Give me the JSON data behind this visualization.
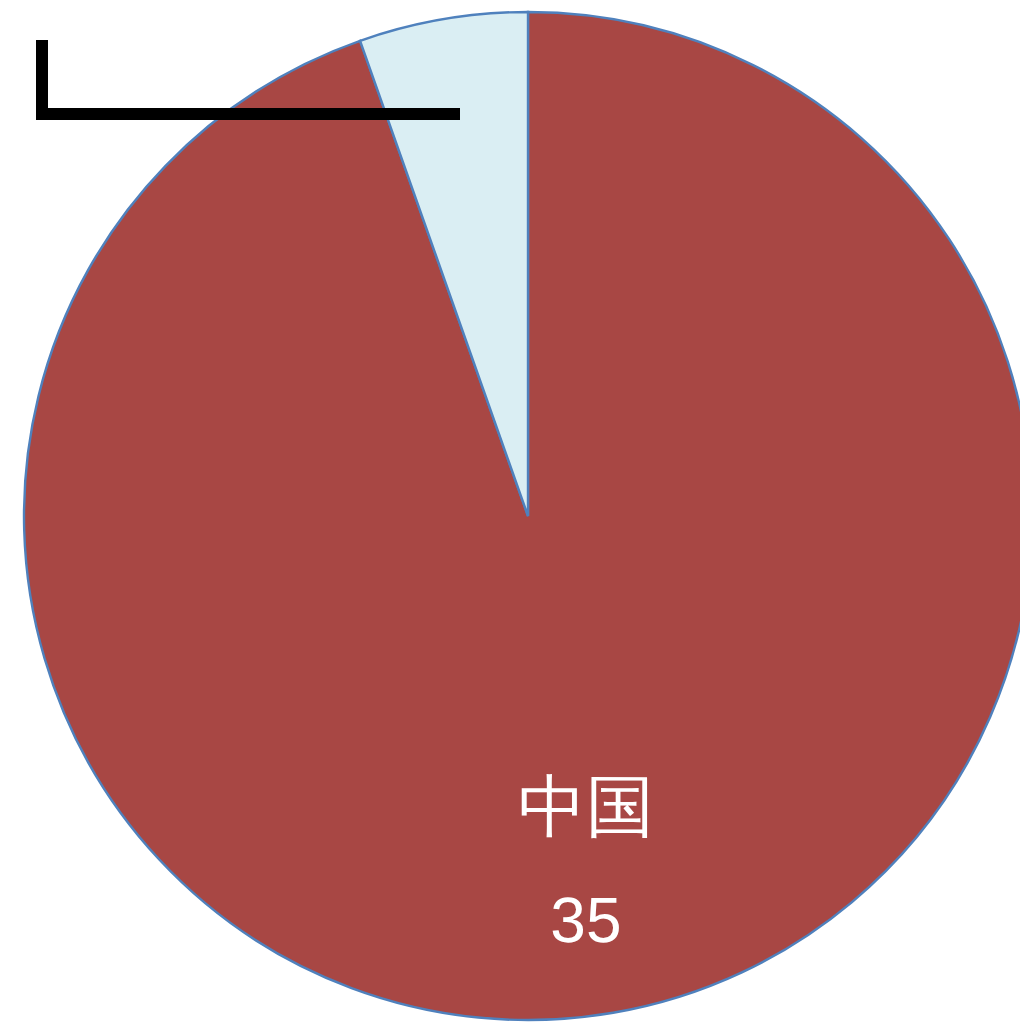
{
  "chart_data": {
    "type": "pie",
    "categories": [
      "中国",
      null
    ],
    "values": [
      35,
      2
    ],
    "value_labels": [
      "35",
      null
    ],
    "colors": [
      "#a84744",
      "#daeef3"
    ]
  }
}
